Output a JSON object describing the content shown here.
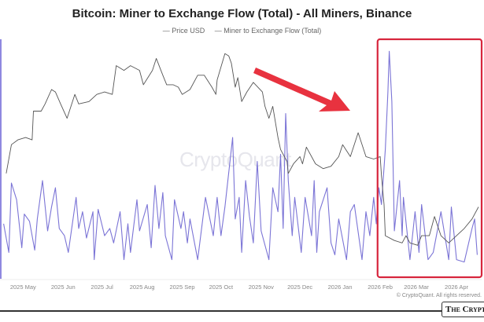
{
  "chart_data": {
    "type": "line",
    "title": "Bitcoin: Miner to Exchange Flow (Total) - All Miners, Binance",
    "xlabel": "",
    "ylabel": "",
    "y_axis_labels_shown": false,
    "y_scale_note": "relative (no y-axis values printed), 0-100",
    "ylim": [
      0,
      100
    ],
    "xlim": [
      "2025-04-15",
      "2026-04-18"
    ],
    "grid": false,
    "legend": "top-center",
    "x_tick_labels": [
      "2025 May",
      "2025 Jun",
      "2025 Jul",
      "2025 Aug",
      "2025 Sep",
      "2025 Oct",
      "2025 Nov",
      "2025 Dec",
      "2026 Jan",
      "2026 Feb",
      "2026 Mar",
      "2026 Apr"
    ],
    "x_tick_dates": [
      "2025-05-01",
      "2025-06-01",
      "2025-07-01",
      "2025-08-01",
      "2025-09-01",
      "2025-10-01",
      "2025-11-01",
      "2025-12-01",
      "2026-01-01",
      "2026-02-01",
      "2026-03-01",
      "2026-04-01"
    ],
    "series": [
      {
        "name": "Price USD",
        "color": "#555555",
        "points": [
          [
            "2025-04-18",
            44
          ],
          [
            "2025-04-22",
            56
          ],
          [
            "2025-04-27",
            58
          ],
          [
            "2025-05-03",
            59
          ],
          [
            "2025-05-08",
            58
          ],
          [
            "2025-05-09",
            70
          ],
          [
            "2025-05-15",
            70
          ],
          [
            "2025-05-18",
            73
          ],
          [
            "2025-05-23",
            79
          ],
          [
            "2025-05-26",
            78
          ],
          [
            "2025-05-30",
            73
          ],
          [
            "2025-06-04",
            67
          ],
          [
            "2025-06-10",
            77
          ],
          [
            "2025-06-13",
            73
          ],
          [
            "2025-06-21",
            74
          ],
          [
            "2025-06-27",
            77
          ],
          [
            "2025-07-03",
            78
          ],
          [
            "2025-07-09",
            77
          ],
          [
            "2025-07-12",
            89
          ],
          [
            "2025-07-18",
            87
          ],
          [
            "2025-07-23",
            89
          ],
          [
            "2025-07-30",
            87
          ],
          [
            "2025-08-02",
            81
          ],
          [
            "2025-08-09",
            87
          ],
          [
            "2025-08-12",
            92
          ],
          [
            "2025-08-17",
            85
          ],
          [
            "2025-08-20",
            81
          ],
          [
            "2025-08-25",
            81
          ],
          [
            "2025-08-29",
            80
          ],
          [
            "2025-09-01",
            77
          ],
          [
            "2025-09-07",
            79
          ],
          [
            "2025-09-13",
            85
          ],
          [
            "2025-09-18",
            85
          ],
          [
            "2025-09-24",
            80
          ],
          [
            "2025-09-27",
            77
          ],
          [
            "2025-09-28",
            83
          ],
          [
            "2025-10-04",
            94
          ],
          [
            "2025-10-07",
            93
          ],
          [
            "2025-10-09",
            90
          ],
          [
            "2025-10-12",
            80
          ],
          [
            "2025-10-14",
            84
          ],
          [
            "2025-10-17",
            74
          ],
          [
            "2025-10-21",
            78
          ],
          [
            "2025-10-26",
            82
          ],
          [
            "2025-11-02",
            78
          ],
          [
            "2025-11-04",
            72
          ],
          [
            "2025-11-07",
            67
          ],
          [
            "2025-11-10",
            72
          ],
          [
            "2025-11-14",
            59
          ],
          [
            "2025-11-16",
            54
          ],
          [
            "2025-11-21",
            49
          ],
          [
            "2025-11-22",
            44
          ],
          [
            "2025-11-26",
            48
          ],
          [
            "2025-12-01",
            51
          ],
          [
            "2025-12-03",
            48
          ],
          [
            "2025-12-06",
            55
          ],
          [
            "2025-12-13",
            48
          ],
          [
            "2025-12-19",
            46
          ],
          [
            "2025-12-25",
            47
          ],
          [
            "2025-12-31",
            51
          ],
          [
            "2026-01-03",
            56
          ],
          [
            "2026-01-09",
            51
          ],
          [
            "2026-01-15",
            61
          ],
          [
            "2026-01-21",
            51
          ],
          [
            "2026-01-27",
            50
          ],
          [
            "2026-02-01",
            51
          ],
          [
            "2026-02-02",
            43
          ],
          [
            "2026-02-04",
            31
          ],
          [
            "2026-02-05",
            18
          ],
          [
            "2026-02-12",
            16
          ],
          [
            "2026-02-18",
            15
          ],
          [
            "2026-02-21",
            18
          ],
          [
            "2026-02-24",
            15
          ],
          [
            "2026-03-02",
            14
          ],
          [
            "2026-03-05",
            18
          ],
          [
            "2026-03-11",
            18
          ],
          [
            "2026-03-15",
            26
          ],
          [
            "2026-03-20",
            18
          ],
          [
            "2026-03-26",
            15
          ],
          [
            "2026-04-01",
            18
          ],
          [
            "2026-04-07",
            21
          ],
          [
            "2026-04-13",
            25
          ],
          [
            "2026-04-18",
            30
          ]
        ]
      },
      {
        "name": "Miner to Exchange Flow (Total)",
        "color": "#7b74d6",
        "points": [
          [
            "2025-04-16",
            23
          ],
          [
            "2025-04-20",
            11
          ],
          [
            "2025-04-22",
            40
          ],
          [
            "2025-04-26",
            33
          ],
          [
            "2025-04-30",
            13
          ],
          [
            "2025-05-02",
            27
          ],
          [
            "2025-05-06",
            24
          ],
          [
            "2025-05-10",
            12
          ],
          [
            "2025-05-12",
            25
          ],
          [
            "2025-05-16",
            41
          ],
          [
            "2025-05-20",
            20
          ],
          [
            "2025-05-23",
            30
          ],
          [
            "2025-05-26",
            38
          ],
          [
            "2025-05-29",
            21
          ],
          [
            "2025-06-02",
            18
          ],
          [
            "2025-06-05",
            11
          ],
          [
            "2025-06-11",
            34
          ],
          [
            "2025-06-13",
            21
          ],
          [
            "2025-06-16",
            28
          ],
          [
            "2025-06-19",
            17
          ],
          [
            "2025-06-24",
            28
          ],
          [
            "2025-06-25",
            8
          ],
          [
            "2025-06-28",
            29
          ],
          [
            "2025-07-03",
            18
          ],
          [
            "2025-07-07",
            21
          ],
          [
            "2025-07-10",
            15
          ],
          [
            "2025-07-15",
            28
          ],
          [
            "2025-07-18",
            8
          ],
          [
            "2025-07-21",
            23
          ],
          [
            "2025-07-23",
            11
          ],
          [
            "2025-07-28",
            33
          ],
          [
            "2025-07-30",
            20
          ],
          [
            "2025-08-05",
            31
          ],
          [
            "2025-08-08",
            13
          ],
          [
            "2025-08-11",
            39
          ],
          [
            "2025-08-14",
            21
          ],
          [
            "2025-08-17",
            36
          ],
          [
            "2025-08-19",
            18
          ],
          [
            "2025-08-24",
            8
          ],
          [
            "2025-08-26",
            33
          ],
          [
            "2025-08-31",
            21
          ],
          [
            "2025-09-02",
            28
          ],
          [
            "2025-09-05",
            15
          ],
          [
            "2025-09-07",
            25
          ],
          [
            "2025-09-13",
            8
          ],
          [
            "2025-09-19",
            34
          ],
          [
            "2025-09-25",
            18
          ],
          [
            "2025-09-28",
            34
          ],
          [
            "2025-10-01",
            18
          ],
          [
            "2025-10-04",
            30
          ],
          [
            "2025-10-10",
            59
          ],
          [
            "2025-10-12",
            25
          ],
          [
            "2025-10-15",
            34
          ],
          [
            "2025-10-17",
            11
          ],
          [
            "2025-10-20",
            41
          ],
          [
            "2025-10-23",
            26
          ],
          [
            "2025-10-26",
            15
          ],
          [
            "2025-10-29",
            49
          ],
          [
            "2025-11-01",
            20
          ],
          [
            "2025-11-07",
            8
          ],
          [
            "2025-11-10",
            38
          ],
          [
            "2025-11-14",
            28
          ],
          [
            "2025-11-16",
            52
          ],
          [
            "2025-11-18",
            21
          ],
          [
            "2025-11-20",
            69
          ],
          [
            "2025-11-22",
            41
          ],
          [
            "2025-11-25",
            18
          ],
          [
            "2025-11-27",
            34
          ],
          [
            "2025-12-02",
            11
          ],
          [
            "2025-12-05",
            34
          ],
          [
            "2025-12-10",
            18
          ],
          [
            "2025-12-12",
            41
          ],
          [
            "2025-12-14",
            11
          ],
          [
            "2025-12-16",
            28
          ],
          [
            "2025-12-22",
            38
          ],
          [
            "2025-12-25",
            15
          ],
          [
            "2025-12-28",
            10
          ],
          [
            "2025-12-31",
            25
          ],
          [
            "2026-01-06",
            8
          ],
          [
            "2026-01-09",
            28
          ],
          [
            "2026-01-12",
            31
          ],
          [
            "2026-01-18",
            8
          ],
          [
            "2026-01-21",
            28
          ],
          [
            "2026-01-24",
            18
          ],
          [
            "2026-01-27",
            34
          ],
          [
            "2026-01-29",
            23
          ],
          [
            "2026-01-31",
            38
          ],
          [
            "2026-02-02",
            31
          ],
          [
            "2026-02-05",
            54
          ],
          [
            "2026-02-07",
            78
          ],
          [
            "2026-02-08",
            95
          ],
          [
            "2026-02-10",
            74
          ],
          [
            "2026-02-12",
            20
          ],
          [
            "2026-02-16",
            41
          ],
          [
            "2026-02-18",
            18
          ],
          [
            "2026-02-19",
            34
          ],
          [
            "2026-02-24",
            8
          ],
          [
            "2026-02-28",
            28
          ],
          [
            "2026-03-03",
            11
          ],
          [
            "2026-03-05",
            31
          ],
          [
            "2026-03-10",
            8
          ],
          [
            "2026-03-14",
            11
          ],
          [
            "2026-03-20",
            28
          ],
          [
            "2026-03-26",
            8
          ],
          [
            "2026-03-28",
            30
          ],
          [
            "2026-04-01",
            8
          ],
          [
            "2026-04-07",
            7
          ],
          [
            "2026-04-13",
            21
          ],
          [
            "2026-04-15",
            25
          ],
          [
            "2026-04-17",
            10
          ]
        ]
      }
    ],
    "annotations": {
      "highlight_box": {
        "from": "2026-01-30",
        "to": "2026-04-18",
        "color": "#d7263d"
      },
      "arrow": {
        "color": "#e8323f",
        "points_to": "highlight_box"
      }
    }
  },
  "legend": {
    "items": [
      "Price USD",
      "Miner to Exchange Flow (Total)"
    ]
  },
  "watermark": "CryptoQuant",
  "copyright": "© CryptoQuant. All rights reserved.",
  "logo": "The Crypto"
}
